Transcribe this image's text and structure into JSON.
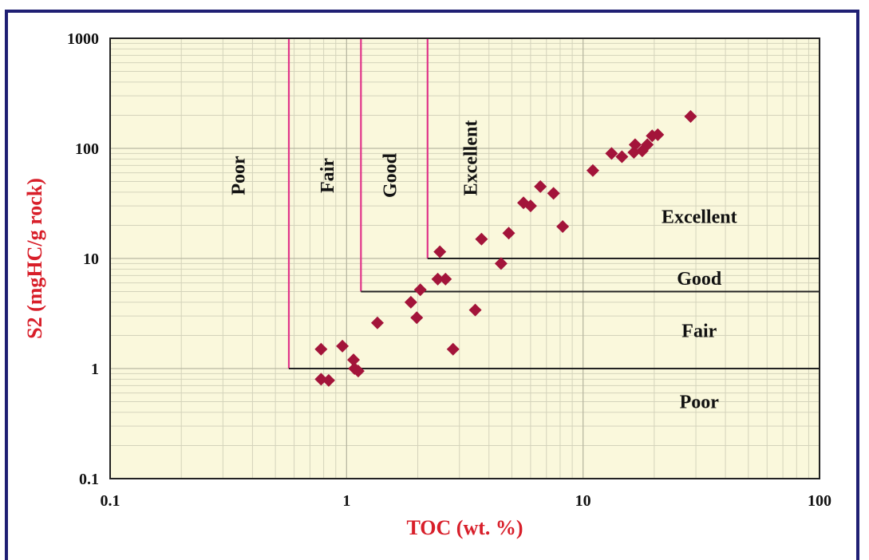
{
  "chart_data": {
    "type": "scatter",
    "xlabel": "TOC (wt. %)",
    "ylabel": "S2 (mgHC/g rock)",
    "x_scale": "log",
    "y_scale": "log",
    "xlim": [
      0.1,
      100
    ],
    "ylim": [
      0.1,
      1000
    ],
    "x_ticks": [
      "0.1",
      "1",
      "10",
      "100"
    ],
    "y_ticks": [
      "0.1",
      "1",
      "10",
      "100",
      "1000"
    ],
    "grid": true,
    "plot_background": "#faf8dc",
    "marker_color": "#a3143a",
    "boundary_colors": {
      "toc": "#e0368a",
      "s2": "#222222"
    },
    "toc_boundaries": [
      0.57,
      1.15,
      2.2
    ],
    "s2_boundaries": [
      1,
      5,
      10
    ],
    "toc_zone_labels": [
      "Poor",
      "Fair",
      "Good",
      "Excellent"
    ],
    "s2_zone_labels": [
      "Excellent",
      "Good",
      "Fair",
      "Poor"
    ],
    "points": [
      [
        0.78,
        1.5
      ],
      [
        0.78,
        0.8
      ],
      [
        0.84,
        0.78
      ],
      [
        0.96,
        1.6
      ],
      [
        1.07,
        1.2
      ],
      [
        1.08,
        1.0
      ],
      [
        1.12,
        0.95
      ],
      [
        1.35,
        2.6
      ],
      [
        1.87,
        4.0
      ],
      [
        1.98,
        2.9
      ],
      [
        2.05,
        5.2
      ],
      [
        2.43,
        6.5
      ],
      [
        2.48,
        11.5
      ],
      [
        2.62,
        6.5
      ],
      [
        2.82,
        1.5
      ],
      [
        3.5,
        3.4
      ],
      [
        3.72,
        15
      ],
      [
        4.5,
        9
      ],
      [
        4.85,
        17
      ],
      [
        5.6,
        32
      ],
      [
        6.0,
        30
      ],
      [
        6.6,
        45
      ],
      [
        7.5,
        39
      ],
      [
        8.2,
        19.5
      ],
      [
        11.0,
        63
      ],
      [
        13.2,
        90
      ],
      [
        14.6,
        84
      ],
      [
        16.4,
        92
      ],
      [
        16.6,
        108
      ],
      [
        17.8,
        95
      ],
      [
        18.7,
        108
      ],
      [
        19.6,
        130
      ],
      [
        20.7,
        133
      ],
      [
        28.5,
        195
      ]
    ]
  }
}
